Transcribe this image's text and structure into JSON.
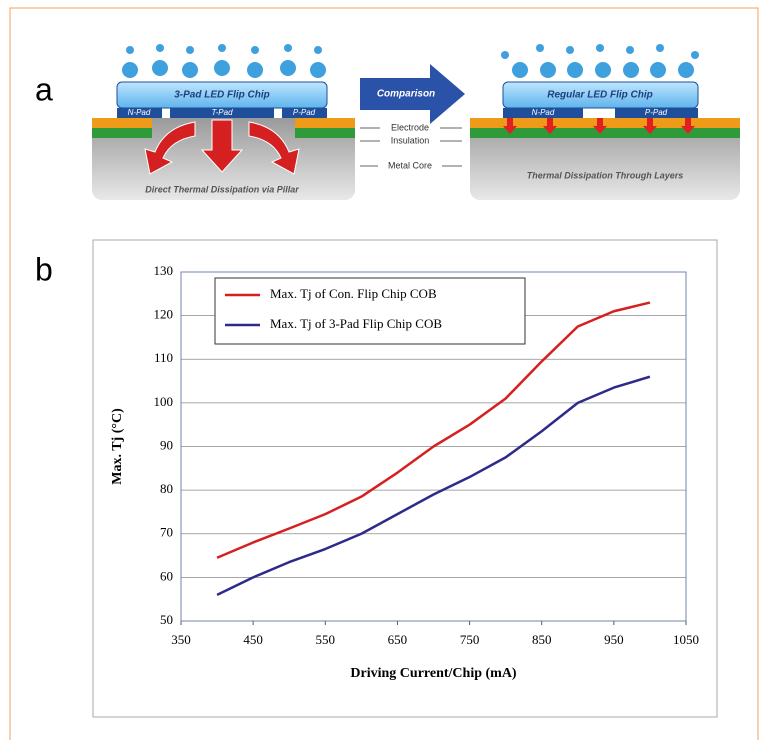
{
  "panel_labels": [
    "a",
    "b"
  ],
  "diagram": {
    "left": {
      "chip_label": "3-Pad LED Flip Chip",
      "pads": [
        "N-Pad",
        "T-Pad",
        "P-Pad"
      ],
      "caption": "Direct Thermal Dissipation via Pillar"
    },
    "arrow_label": "Comparison",
    "layers": [
      "Electrode",
      "Insulation",
      "Metal Core"
    ],
    "right": {
      "chip_label": "Regular LED Flip Chip",
      "pads": [
        "N-Pad",
        "P-Pad"
      ],
      "caption": "Thermal Dissipation Through Layers"
    }
  },
  "chart_data": {
    "type": "line",
    "x_label": "Driving Current/Chip (mA)",
    "y_label": "Max. Tj (°C)",
    "x": [
      400,
      450,
      500,
      550,
      600,
      650,
      700,
      750,
      800,
      850,
      900,
      950,
      1000
    ],
    "series": [
      {
        "name": "Max. Tj of Con. Flip Chip COB",
        "color": "#d62020",
        "values": [
          64.5,
          68,
          71.2,
          74.5,
          78.5,
          84,
          90,
          95,
          101,
          109.5,
          117.5,
          121,
          123
        ]
      },
      {
        "name": "Max. Tj of 3-Pad Flip Chip COB",
        "color": "#2e2a8a",
        "values": [
          56,
          60,
          63.5,
          66.5,
          70,
          74.5,
          79,
          83,
          87.5,
          93.5,
          100,
          103.5,
          106
        ]
      }
    ],
    "xlim": [
      350,
      1050
    ],
    "xticks": [
      350,
      450,
      550,
      650,
      750,
      850,
      950,
      1050
    ],
    "ylim": [
      50,
      130
    ],
    "yticks": [
      50,
      60,
      70,
      80,
      90,
      100,
      110,
      120,
      130
    ],
    "grid": true,
    "legend": "upper-left"
  }
}
